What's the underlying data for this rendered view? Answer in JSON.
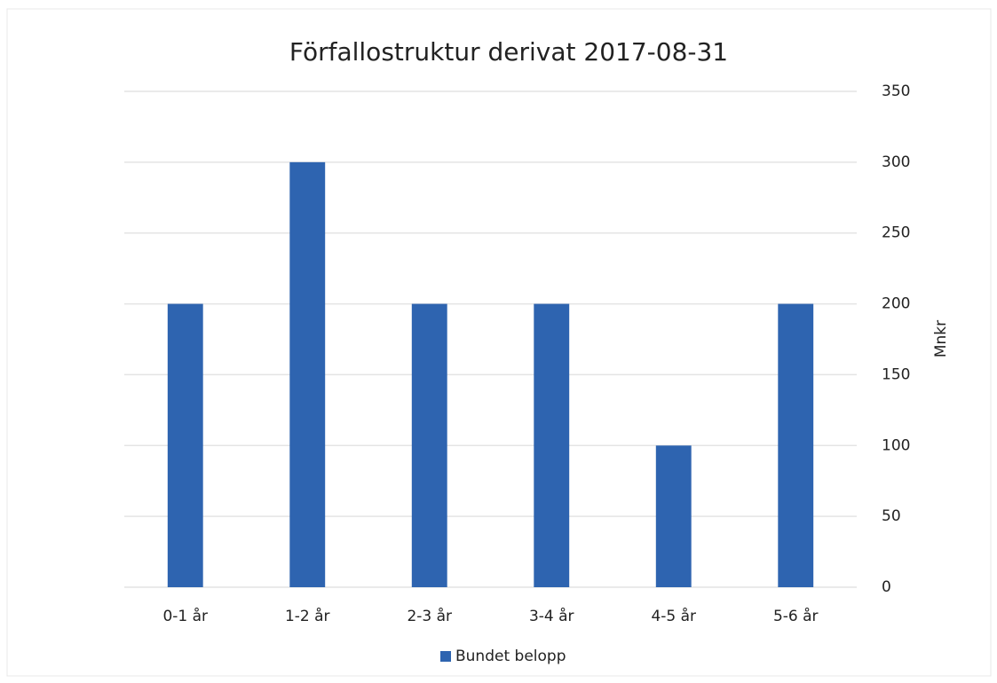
{
  "chart_data": {
    "type": "bar",
    "title": "Förfallostruktur derivat 2017-08-31",
    "categories": [
      "0-1 år",
      "1-2 år",
      "2-3 år",
      "3-4 år",
      "4-5 år",
      "5-6 år"
    ],
    "series": [
      {
        "name": "Bundet belopp",
        "color": "#2e64b0",
        "values": [
          200,
          300,
          200,
          200,
          100,
          200
        ]
      }
    ],
    "y_axis_label": "Mnkr",
    "y_axis_side": "right",
    "ylim": [
      0,
      350
    ],
    "yticks": [
      0,
      50,
      100,
      150,
      200,
      250,
      300,
      350
    ],
    "grid": true,
    "legend": "bottom"
  }
}
